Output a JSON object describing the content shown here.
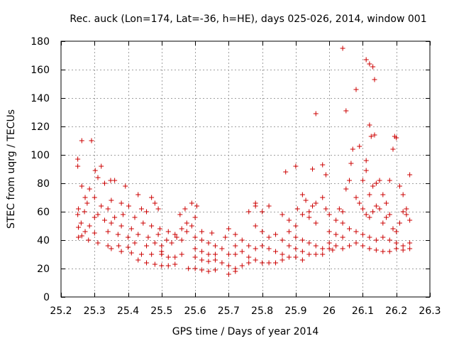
{
  "chart_data": {
    "type": "scatter",
    "title": "Rec. auck (Lon=174, Lat=-36, h=HE), days 025-026, 2014, window 001",
    "xlabel": "GPS time / Days of year 2014",
    "ylabel": "STEC from uqrg / TECUs",
    "xlim": [
      25.2,
      26.3
    ],
    "ylim": [
      0,
      180
    ],
    "xticks": [
      25.2,
      25.3,
      25.4,
      25.5,
      25.6,
      25.7,
      25.8,
      25.9,
      26,
      26.1,
      26.2,
      26.3
    ],
    "xtick_labels": [
      "25.2",
      "25.3",
      "25.4",
      "25.5",
      "25.6",
      "25.7",
      "25.8",
      "25.9",
      "26",
      "26.1",
      "26.2",
      "26.3"
    ],
    "yticks": [
      0,
      20,
      40,
      60,
      80,
      100,
      120,
      140,
      160,
      180
    ],
    "ytick_labels": [
      "0",
      "20",
      "40",
      "60",
      "80",
      "100",
      "120",
      "140",
      "160",
      "180"
    ],
    "grid": true,
    "marker": "+",
    "color": "#cc0000",
    "series": [
      {
        "name": "STEC",
        "points": [
          [
            25.25,
            97
          ],
          [
            25.25,
            92
          ],
          [
            25.262,
            110
          ],
          [
            25.291,
            110
          ],
          [
            25.32,
            92
          ],
          [
            25.302,
            89
          ],
          [
            25.31,
            84
          ],
          [
            25.262,
            78
          ],
          [
            25.285,
            76
          ],
          [
            25.348,
            82
          ],
          [
            25.36,
            82
          ],
          [
            25.33,
            80
          ],
          [
            25.392,
            78
          ],
          [
            25.272,
            70
          ],
          [
            25.3,
            70
          ],
          [
            25.43,
            72
          ],
          [
            25.47,
            70
          ],
          [
            25.278,
            66
          ],
          [
            25.35,
            68
          ],
          [
            25.38,
            66
          ],
          [
            25.402,
            64
          ],
          [
            25.48,
            66
          ],
          [
            25.252,
            62
          ],
          [
            25.27,
            60
          ],
          [
            25.31,
            58
          ],
          [
            25.32,
            64
          ],
          [
            25.34,
            62
          ],
          [
            25.44,
            62
          ],
          [
            25.455,
            60
          ],
          [
            25.49,
            62
          ],
          [
            25.25,
            58
          ],
          [
            25.3,
            56
          ],
          [
            25.33,
            54
          ],
          [
            25.36,
            56
          ],
          [
            25.385,
            58
          ],
          [
            25.42,
            56
          ],
          [
            25.26,
            52
          ],
          [
            25.285,
            50
          ],
          [
            25.35,
            52
          ],
          [
            25.38,
            50
          ],
          [
            25.41,
            48
          ],
          [
            25.445,
            52
          ],
          [
            25.47,
            50
          ],
          [
            25.495,
            48
          ],
          [
            25.252,
            49
          ],
          [
            25.272,
            46
          ],
          [
            25.3,
            45
          ],
          [
            25.34,
            46
          ],
          [
            25.37,
            44
          ],
          [
            25.4,
            42
          ],
          [
            25.43,
            44
          ],
          [
            25.46,
            42
          ],
          [
            25.49,
            44
          ],
          [
            25.252,
            42
          ],
          [
            25.262,
            43
          ],
          [
            25.282,
            40
          ],
          [
            25.31,
            38
          ],
          [
            25.34,
            36
          ],
          [
            25.372,
            36
          ],
          [
            25.4,
            35
          ],
          [
            25.42,
            38
          ],
          [
            25.455,
            36
          ],
          [
            25.48,
            38
          ],
          [
            25.35,
            34
          ],
          [
            25.38,
            32
          ],
          [
            25.41,
            31
          ],
          [
            25.44,
            30
          ],
          [
            25.47,
            30
          ],
          [
            25.5,
            32
          ],
          [
            25.43,
            26
          ],
          [
            25.455,
            24
          ],
          [
            25.48,
            23
          ],
          [
            25.5,
            22
          ],
          [
            25.52,
            22
          ],
          [
            25.54,
            23
          ],
          [
            25.5,
            30
          ],
          [
            25.52,
            28
          ],
          [
            25.54,
            28
          ],
          [
            25.56,
            30
          ],
          [
            25.5,
            36
          ],
          [
            25.515,
            40
          ],
          [
            25.53,
            38
          ],
          [
            25.545,
            42
          ],
          [
            25.56,
            40
          ],
          [
            25.52,
            46
          ],
          [
            25.54,
            44
          ],
          [
            25.56,
            48
          ],
          [
            25.575,
            46
          ],
          [
            25.555,
            58
          ],
          [
            25.57,
            62
          ],
          [
            25.59,
            66
          ],
          [
            25.605,
            64
          ],
          [
            25.575,
            52
          ],
          [
            25.59,
            50
          ],
          [
            25.6,
            56
          ],
          [
            25.58,
            20
          ],
          [
            25.6,
            20
          ],
          [
            25.62,
            19
          ],
          [
            25.64,
            18
          ],
          [
            25.66,
            19
          ],
          [
            25.6,
            28
          ],
          [
            25.62,
            26
          ],
          [
            25.64,
            25
          ],
          [
            25.66,
            26
          ],
          [
            25.6,
            34
          ],
          [
            25.62,
            32
          ],
          [
            25.64,
            30
          ],
          [
            25.66,
            30
          ],
          [
            25.6,
            42
          ],
          [
            25.62,
            40
          ],
          [
            25.64,
            38
          ],
          [
            25.66,
            36
          ],
          [
            25.62,
            46
          ],
          [
            25.65,
            45
          ],
          [
            25.68,
            34
          ],
          [
            25.7,
            30
          ],
          [
            25.72,
            30
          ],
          [
            25.74,
            32
          ],
          [
            25.68,
            24
          ],
          [
            25.7,
            22
          ],
          [
            25.72,
            18
          ],
          [
            25.7,
            16
          ],
          [
            25.72,
            20
          ],
          [
            25.74,
            22
          ],
          [
            25.76,
            24
          ],
          [
            25.69,
            42
          ],
          [
            25.7,
            48
          ],
          [
            25.72,
            44
          ],
          [
            25.74,
            40
          ],
          [
            25.76,
            36
          ],
          [
            25.78,
            34
          ],
          [
            25.72,
            36
          ],
          [
            25.76,
            28
          ],
          [
            25.78,
            26
          ],
          [
            25.8,
            24
          ],
          [
            25.82,
            24
          ],
          [
            25.84,
            24
          ],
          [
            25.86,
            26
          ],
          [
            25.76,
            60
          ],
          [
            25.78,
            64
          ],
          [
            25.78,
            66
          ],
          [
            25.8,
            60
          ],
          [
            25.82,
            64
          ],
          [
            25.78,
            50
          ],
          [
            25.8,
            46
          ],
          [
            25.82,
            42
          ],
          [
            25.84,
            44
          ],
          [
            25.86,
            40
          ],
          [
            25.8,
            36
          ],
          [
            25.82,
            34
          ],
          [
            25.84,
            32
          ],
          [
            25.86,
            30
          ],
          [
            25.88,
            28
          ],
          [
            25.86,
            58
          ],
          [
            25.88,
            54
          ],
          [
            25.9,
            50
          ],
          [
            25.87,
            88
          ],
          [
            25.9,
            92
          ],
          [
            25.905,
            62
          ],
          [
            25.92,
            58
          ],
          [
            25.94,
            56
          ],
          [
            25.96,
            52
          ],
          [
            25.88,
            46
          ],
          [
            25.9,
            42
          ],
          [
            25.92,
            40
          ],
          [
            25.94,
            38
          ],
          [
            25.96,
            36
          ],
          [
            25.98,
            34
          ],
          [
            25.88,
            36
          ],
          [
            25.9,
            34
          ],
          [
            25.92,
            32
          ],
          [
            25.94,
            30
          ],
          [
            25.96,
            30
          ],
          [
            25.98,
            30
          ],
          [
            25.9,
            28
          ],
          [
            25.92,
            26
          ],
          [
            25.95,
            90
          ],
          [
            25.96,
            129
          ],
          [
            25.98,
            93
          ],
          [
            25.99,
            86
          ],
          [
            25.96,
            66
          ],
          [
            25.98,
            70
          ],
          [
            25.99,
            62
          ],
          [
            25.94,
            60
          ],
          [
            25.92,
            72
          ],
          [
            25.93,
            68
          ],
          [
            25.95,
            64
          ],
          [
            26.0,
            58
          ],
          [
            26.02,
            54
          ],
          [
            26.04,
            52
          ],
          [
            26.0,
            46
          ],
          [
            26.02,
            44
          ],
          [
            26.04,
            42
          ],
          [
            26.0,
            38
          ],
          [
            26.02,
            36
          ],
          [
            26.04,
            34
          ],
          [
            26.06,
            36
          ],
          [
            26.08,
            38
          ],
          [
            26.0,
            34
          ],
          [
            26.01,
            33
          ],
          [
            26.03,
            62
          ],
          [
            26.04,
            60
          ],
          [
            26.05,
            76
          ],
          [
            26.06,
            82
          ],
          [
            26.04,
            175
          ],
          [
            26.05,
            131
          ],
          [
            26.08,
            146
          ],
          [
            26.07,
            104
          ],
          [
            26.065,
            94
          ],
          [
            26.09,
            106
          ],
          [
            26.1,
            82
          ],
          [
            26.11,
            89
          ],
          [
            26.11,
            167
          ],
          [
            26.12,
            164
          ],
          [
            26.13,
            162
          ],
          [
            26.135,
            153
          ],
          [
            26.12,
            121
          ],
          [
            26.125,
            113
          ],
          [
            26.135,
            114
          ],
          [
            26.11,
            96
          ],
          [
            26.12,
            72
          ],
          [
            26.13,
            78
          ],
          [
            26.14,
            80
          ],
          [
            26.15,
            82
          ],
          [
            26.16,
            72
          ],
          [
            26.17,
            66
          ],
          [
            26.18,
            82
          ],
          [
            26.19,
            104
          ],
          [
            26.195,
            113
          ],
          [
            26.2,
            112
          ],
          [
            26.21,
            78
          ],
          [
            26.22,
            72
          ],
          [
            26.23,
            62
          ],
          [
            26.24,
            86
          ],
          [
            26.08,
            70
          ],
          [
            26.09,
            66
          ],
          [
            26.1,
            62
          ],
          [
            26.11,
            58
          ],
          [
            26.12,
            56
          ],
          [
            26.13,
            60
          ],
          [
            26.14,
            64
          ],
          [
            26.15,
            62
          ],
          [
            26.16,
            52
          ],
          [
            26.17,
            56
          ],
          [
            26.18,
            58
          ],
          [
            26.19,
            48
          ],
          [
            26.2,
            46
          ],
          [
            26.21,
            52
          ],
          [
            26.22,
            60
          ],
          [
            26.23,
            58
          ],
          [
            26.24,
            54
          ],
          [
            26.06,
            48
          ],
          [
            26.08,
            46
          ],
          [
            26.1,
            44
          ],
          [
            26.12,
            42
          ],
          [
            26.14,
            40
          ],
          [
            26.16,
            42
          ],
          [
            26.18,
            40
          ],
          [
            26.2,
            38
          ],
          [
            26.22,
            36
          ],
          [
            26.24,
            38
          ],
          [
            26.1,
            36
          ],
          [
            26.12,
            34
          ],
          [
            26.14,
            33
          ],
          [
            26.16,
            32
          ],
          [
            26.18,
            32
          ],
          [
            26.2,
            34
          ],
          [
            26.22,
            33
          ],
          [
            26.24,
            34
          ]
        ]
      }
    ]
  }
}
